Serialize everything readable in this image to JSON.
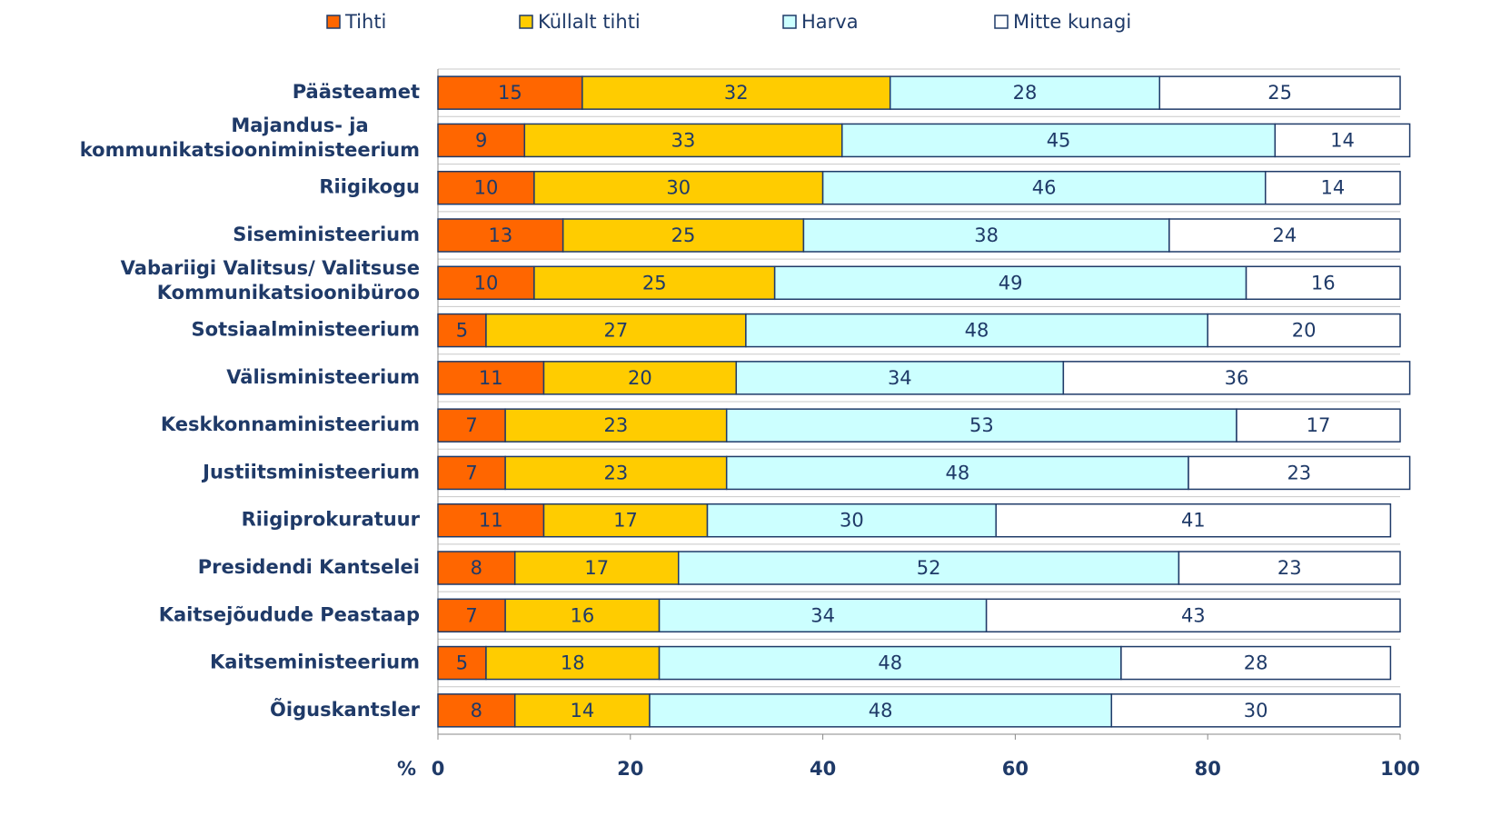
{
  "chart_data": {
    "type": "stacked_barh",
    "categories": [
      "Päästeamet",
      "Majandus- ja\nkommunikatsiooniministeerium",
      "Riigikogu",
      "Siseministeerium",
      "Vabariigi Valitsus/ Valitsuse\nKommunikatsioonibüroo",
      "Sotsiaalministeerium",
      "Välisministeerium",
      "Keskkonnaministeerium",
      "Justiitsministeerium",
      "Riigiprokuratuur",
      "Presidendi Kantselei",
      "Kaitsejõudude Peastaap",
      "Kaitseministeerium",
      "Õiguskantsler"
    ],
    "series": [
      {
        "name": "Tihti",
        "color": "#ff6600",
        "values": [
          15,
          9,
          10,
          13,
          10,
          5,
          11,
          7,
          7,
          11,
          8,
          7,
          5,
          8
        ]
      },
      {
        "name": "Küllalt tihti",
        "color": "#ffcc00",
        "values": [
          32,
          33,
          30,
          25,
          25,
          27,
          20,
          23,
          23,
          17,
          17,
          16,
          18,
          14
        ]
      },
      {
        "name": "Harva",
        "color": "#ccffff",
        "values": [
          28,
          45,
          46,
          38,
          49,
          48,
          34,
          53,
          48,
          30,
          52,
          34,
          48,
          48
        ]
      },
      {
        "name": "Mitte kunagi",
        "color": "#ffffff",
        "values": [
          25,
          14,
          14,
          24,
          16,
          20,
          36,
          17,
          23,
          41,
          23,
          43,
          28,
          30
        ]
      }
    ],
    "x_label": "%",
    "xlim": [
      0,
      100
    ],
    "xticks": [
      0,
      20,
      40,
      60,
      80,
      100
    ],
    "legend": "top"
  }
}
